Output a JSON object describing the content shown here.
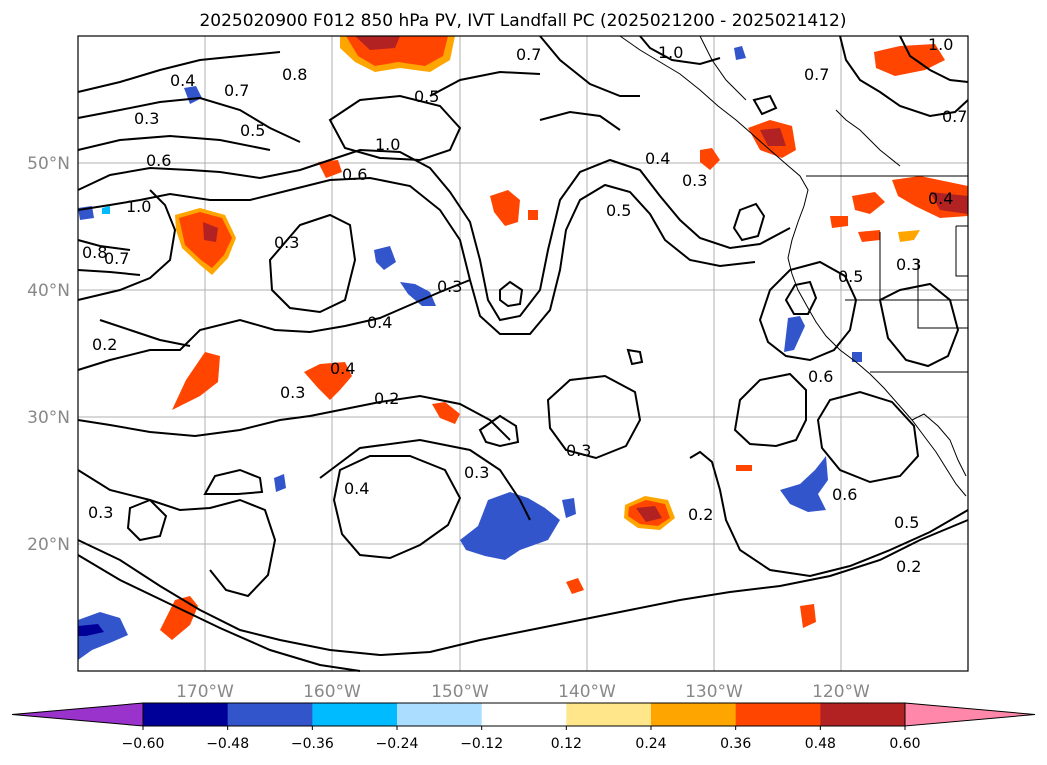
{
  "title": "2025020900 F012 850 hPa PV, IVT Landfall PC (2025021200 - 2025021412)",
  "axes": {
    "longitude_ticks": [
      "170°W",
      "160°W",
      "150°W",
      "140°W",
      "130°W",
      "120°W"
    ],
    "latitude_ticks": [
      "50°N",
      "40°N",
      "30°N",
      "20°N"
    ],
    "lon_range": [
      -180,
      -110
    ],
    "lat_range": [
      10,
      60
    ],
    "gridlines": true
  },
  "colorbar": {
    "levels": [
      "−0.60",
      "−0.48",
      "−0.36",
      "−0.24",
      "−0.12",
      "0.12",
      "0.24",
      "0.36",
      "0.48",
      "0.60"
    ],
    "colors": [
      "#9933cc",
      "#000099",
      "#3355cc",
      "#00bbff",
      "#aaddff",
      "#ffffff",
      "#ffe68a",
      "#ffa500",
      "#ff4500",
      "#b22222",
      "#ff88aa"
    ],
    "extend": "both"
  },
  "contour_labels": [
    "0.7",
    "1.0",
    "0.4",
    "0.7",
    "0.8",
    "0.5",
    "0.3",
    "0.5",
    "1.0",
    "0.6",
    "0.6",
    "0.4",
    "0.3",
    "1.0",
    "0.8",
    "0.7",
    "0.3",
    "0.5",
    "0.3",
    "0.4",
    "0.2",
    "0.4",
    "0.3",
    "0.2",
    "0.3",
    "0.3",
    "0.4",
    "0.2",
    "0.3",
    "0.5",
    "0.6",
    "0.6",
    "0.5",
    "0.2",
    "0.7",
    "0.7",
    "1.0",
    "0.4",
    "0.3"
  ]
}
